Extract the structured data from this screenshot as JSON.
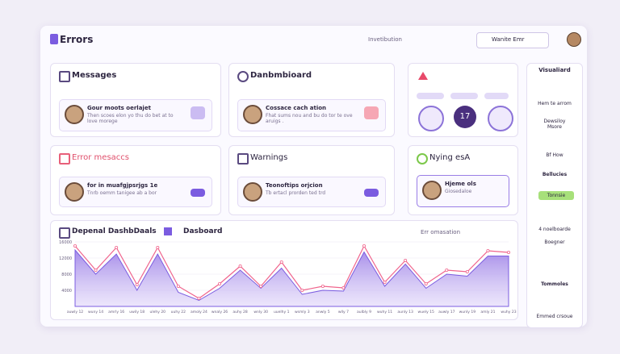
{
  "header": {
    "title": "Errors",
    "nav": "Invetibution",
    "dropdown": "Wanite Emr"
  },
  "cards": [
    {
      "title": "Messages",
      "item_title": "Gour moots oerlajet",
      "item_text": "Then scoes elon yo thu do bet at to love morege"
    },
    {
      "title": "Danbmbioard",
      "item_title": "Cossace cach ation",
      "item_text": "Fhat sums nou and bu do tor te ove aruigs ."
    },
    {
      "title": "Error mesaccs",
      "item_title": "for in muafgjpsrjgs 1e",
      "item_text": "Tnrb oemm tanigee ab a bor"
    },
    {
      "title": "Warnings",
      "item_title": "Teonoftips orjcion",
      "item_text": "Tb ertacl prorden ted trd"
    },
    {
      "title": "Nying esA",
      "item_title": "Hjeme ols",
      "item_text": "Giosedaloe"
    }
  ],
  "status": {
    "badge": "17"
  },
  "sidebar": {
    "title": "Visualiard",
    "items": [
      "Hem te arrom",
      "Dewsiloy Msore",
      "Bf How",
      "Bellucies",
      "Tonnsie",
      "4 noelboarde",
      "Boegner",
      "Tommoles",
      "Emmed crsoue"
    ]
  },
  "chart_data": {
    "type": "area",
    "title": "Depenal DashbDaals",
    "tab": "Dasboard",
    "filter": "Err omasation",
    "categories": [
      "auwly 12",
      "wuny 14",
      "amrly 16",
      "uwily 18",
      "ulehy 20",
      "uuhy 22",
      "amoly 24",
      "wnaly 26",
      "auhy 28",
      "wnly 30",
      "uuelhy 1",
      "wsmly 3",
      "anwly 5",
      "wlly 7",
      "aulbly 9",
      "wuhy 11",
      "aunly 13",
      "wuely 15",
      "auwly 17",
      "wunly 19",
      "amly 21",
      "wuhy 23"
    ],
    "series": [
      {
        "color": "#a98ee8",
        "values": [
          14000,
          8000,
          13000,
          4000,
          13000,
          3500,
          1500,
          4500,
          9000,
          4500,
          9500,
          3000,
          4000,
          3800,
          13500,
          5000,
          10500,
          4500,
          8000,
          7500,
          12500,
          12500
        ]
      },
      {
        "color": "#f0648c",
        "values": [
          15000,
          9000,
          14600,
          5400,
          14600,
          5000,
          2000,
          5600,
          10000,
          5000,
          11000,
          4000,
          5000,
          4600,
          15000,
          6000,
          11400,
          5600,
          9000,
          8600,
          13800,
          13400
        ]
      }
    ],
    "ylim": [
      0,
      16000
    ],
    "yticks": [
      4000,
      8000,
      12000,
      16000
    ],
    "grid": true
  }
}
